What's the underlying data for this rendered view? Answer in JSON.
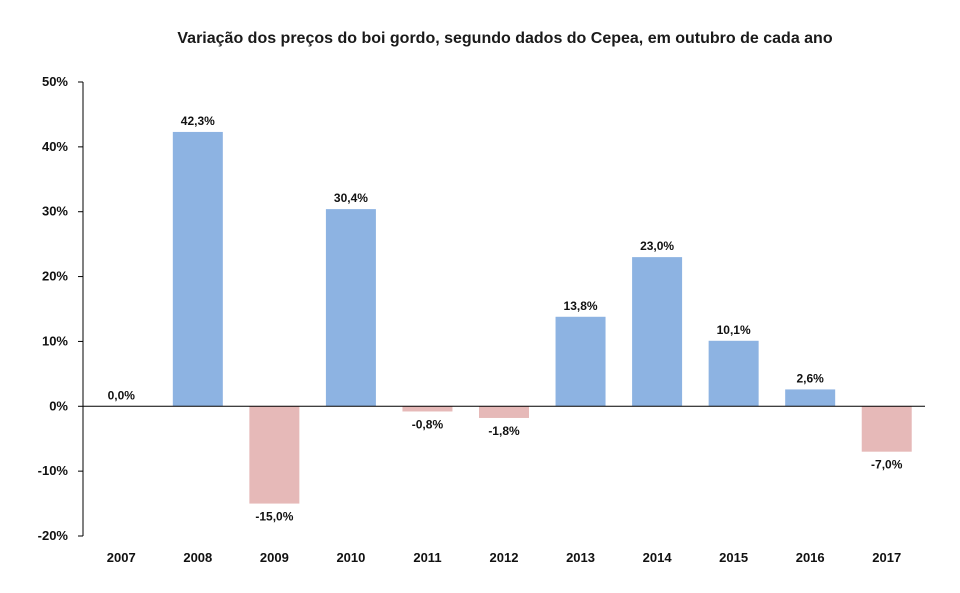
{
  "chart_data": {
    "type": "bar",
    "title": "Variação dos preços do boi gordo, segundo dados do Cepea, em outubro de cada ano",
    "xlabel": "",
    "ylabel": "",
    "categories": [
      "2007",
      "2008",
      "2009",
      "2010",
      "2011",
      "2012",
      "2013",
      "2014",
      "2015",
      "2016",
      "2017"
    ],
    "values": [
      0.0,
      42.3,
      -15.0,
      30.4,
      -0.8,
      -1.8,
      13.8,
      23.0,
      10.1,
      2.6,
      -7.0
    ],
    "data_labels": [
      "0,0%",
      "42,3%",
      "-15,0%",
      "30,4%",
      "-0,8%",
      "-1,8%",
      "13,8%",
      "23,0%",
      "10,1%",
      "2,6%",
      "-7,0%"
    ],
    "ylim": [
      -20,
      50
    ],
    "yticks": [
      -20,
      -10,
      0,
      10,
      20,
      30,
      40,
      50
    ],
    "ytick_labels": [
      "-20%",
      "-10%",
      "0%",
      "10%",
      "20%",
      "30%",
      "40%",
      "50%"
    ],
    "colors": {
      "positive": "#8DB3E2",
      "negative": "#E6B9B8",
      "axis": "#000000"
    },
    "grid": false,
    "legend": "none"
  }
}
